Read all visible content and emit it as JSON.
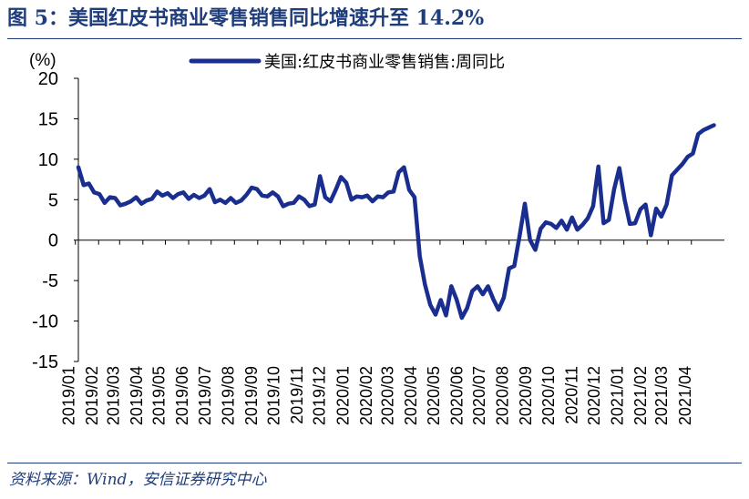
{
  "figure": {
    "title": "图 5：美国红皮书商业零售销售同比增速升至 14.2%",
    "source": "资料来源：Wind，安信证券研究中心"
  },
  "colors": {
    "accent": "#1f3d7a",
    "series": "#1a2e8f"
  },
  "chart_data": {
    "type": "line",
    "ylabel_unit": "(%)",
    "ylim": [
      -15,
      20
    ],
    "yticks": [
      20,
      15,
      10,
      5,
      0,
      -5,
      -10,
      -15
    ],
    "x_start": "2019/01/05",
    "x_end": "2021/05/15",
    "categories": [
      "2019/01",
      "2019/02",
      "2019/03",
      "2019/04",
      "2019/05",
      "2019/06",
      "2019/07",
      "2019/08",
      "2019/09",
      "2019/10",
      "2019/11",
      "2019/12",
      "2020/01",
      "2020/02",
      "2020/03",
      "2020/04",
      "2020/05",
      "2020/06",
      "2020/07",
      "2020/08",
      "2020/09",
      "2020/10",
      "2020/11",
      "2020/12",
      "2021/01",
      "2021/02",
      "2021/03",
      "2021/04"
    ],
    "legend": {
      "position": "top-center"
    },
    "grid": false,
    "series": [
      {
        "name": "美国:红皮书商业零售销售:周同比",
        "points": [
          [
            "2019/01/05",
            9.0
          ],
          [
            "2019/01/12",
            6.8
          ],
          [
            "2019/01/19",
            7.0
          ],
          [
            "2019/01/26",
            5.9
          ],
          [
            "2019/02/02",
            5.7
          ],
          [
            "2019/02/09",
            4.6
          ],
          [
            "2019/02/16",
            5.3
          ],
          [
            "2019/02/23",
            5.2
          ],
          [
            "2019/03/02",
            4.3
          ],
          [
            "2019/03/09",
            4.5
          ],
          [
            "2019/03/16",
            4.8
          ],
          [
            "2019/03/23",
            5.3
          ],
          [
            "2019/03/30",
            4.5
          ],
          [
            "2019/04/06",
            4.9
          ],
          [
            "2019/04/13",
            5.1
          ],
          [
            "2019/04/20",
            6.0
          ],
          [
            "2019/04/27",
            5.5
          ],
          [
            "2019/05/04",
            5.8
          ],
          [
            "2019/05/11",
            5.2
          ],
          [
            "2019/05/18",
            5.7
          ],
          [
            "2019/05/25",
            5.9
          ],
          [
            "2019/06/01",
            5.1
          ],
          [
            "2019/06/08",
            5.6
          ],
          [
            "2019/06/15",
            5.2
          ],
          [
            "2019/06/22",
            5.5
          ],
          [
            "2019/06/29",
            6.3
          ],
          [
            "2019/07/06",
            4.7
          ],
          [
            "2019/07/13",
            5.0
          ],
          [
            "2019/07/20",
            4.6
          ],
          [
            "2019/07/27",
            5.2
          ],
          [
            "2019/08/03",
            4.6
          ],
          [
            "2019/08/10",
            4.9
          ],
          [
            "2019/08/17",
            5.6
          ],
          [
            "2019/08/24",
            6.5
          ],
          [
            "2019/08/31",
            6.3
          ],
          [
            "2019/09/07",
            5.5
          ],
          [
            "2019/09/14",
            5.4
          ],
          [
            "2019/09/21",
            5.9
          ],
          [
            "2019/09/28",
            5.4
          ],
          [
            "2019/10/05",
            4.2
          ],
          [
            "2019/10/12",
            4.5
          ],
          [
            "2019/10/19",
            4.6
          ],
          [
            "2019/10/26",
            5.4
          ],
          [
            "2019/11/02",
            5.0
          ],
          [
            "2019/11/09",
            4.2
          ],
          [
            "2019/11/16",
            4.4
          ],
          [
            "2019/11/23",
            7.9
          ],
          [
            "2019/11/30",
            5.3
          ],
          [
            "2019/12/07",
            4.8
          ],
          [
            "2019/12/14",
            6.2
          ],
          [
            "2019/12/21",
            7.8
          ],
          [
            "2019/12/28",
            7.1
          ],
          [
            "2020/01/04",
            5.0
          ],
          [
            "2020/01/11",
            5.4
          ],
          [
            "2020/01/18",
            5.3
          ],
          [
            "2020/01/25",
            5.5
          ],
          [
            "2020/02/01",
            4.8
          ],
          [
            "2020/02/08",
            5.4
          ],
          [
            "2020/02/15",
            5.3
          ],
          [
            "2020/02/22",
            5.9
          ],
          [
            "2020/02/29",
            6.0
          ],
          [
            "2020/03/07",
            8.4
          ],
          [
            "2020/03/14",
            9.0
          ],
          [
            "2020/03/21",
            6.2
          ],
          [
            "2020/03/28",
            5.3
          ],
          [
            "2020/04/04",
            -2.0
          ],
          [
            "2020/04/11",
            -5.5
          ],
          [
            "2020/04/18",
            -8.0
          ],
          [
            "2020/04/25",
            -9.2
          ],
          [
            "2020/05/02",
            -7.4
          ],
          [
            "2020/05/09",
            -9.3
          ],
          [
            "2020/05/16",
            -5.7
          ],
          [
            "2020/05/23",
            -7.3
          ],
          [
            "2020/05/30",
            -9.6
          ],
          [
            "2020/06/06",
            -8.4
          ],
          [
            "2020/06/13",
            -6.3
          ],
          [
            "2020/06/20",
            -5.7
          ],
          [
            "2020/06/27",
            -6.7
          ],
          [
            "2020/07/04",
            -5.7
          ],
          [
            "2020/07/11",
            -7.3
          ],
          [
            "2020/07/18",
            -8.6
          ],
          [
            "2020/07/25",
            -7.1
          ],
          [
            "2020/08/01",
            -3.5
          ],
          [
            "2020/08/08",
            -3.2
          ],
          [
            "2020/08/15",
            0.5
          ],
          [
            "2020/08/22",
            4.5
          ],
          [
            "2020/08/29",
            0.0
          ],
          [
            "2020/09/05",
            -1.2
          ],
          [
            "2020/09/12",
            1.4
          ],
          [
            "2020/09/19",
            2.2
          ],
          [
            "2020/09/26",
            2.0
          ],
          [
            "2020/10/03",
            1.5
          ],
          [
            "2020/10/10",
            2.4
          ],
          [
            "2020/10/17",
            1.3
          ],
          [
            "2020/10/24",
            2.8
          ],
          [
            "2020/10/31",
            1.3
          ],
          [
            "2020/11/07",
            1.9
          ],
          [
            "2020/11/14",
            2.7
          ],
          [
            "2020/11/21",
            4.2
          ],
          [
            "2020/11/28",
            9.1
          ],
          [
            "2020/12/05",
            2.1
          ],
          [
            "2020/12/12",
            2.5
          ],
          [
            "2020/12/19",
            6.3
          ],
          [
            "2020/12/26",
            8.9
          ],
          [
            "2021/01/02",
            5.0
          ],
          [
            "2021/01/09",
            2.0
          ],
          [
            "2021/01/16",
            2.1
          ],
          [
            "2021/01/23",
            3.8
          ],
          [
            "2021/01/30",
            4.4
          ],
          [
            "2021/02/06",
            0.6
          ],
          [
            "2021/02/13",
            3.9
          ],
          [
            "2021/02/20",
            2.9
          ],
          [
            "2021/02/27",
            4.4
          ],
          [
            "2021/03/06",
            8.0
          ],
          [
            "2021/03/13",
            8.7
          ],
          [
            "2021/03/20",
            9.4
          ],
          [
            "2021/03/27",
            10.3
          ],
          [
            "2021/04/03",
            10.7
          ],
          [
            "2021/04/10",
            13.1
          ],
          [
            "2021/04/17",
            13.6
          ],
          [
            "2021/04/24",
            13.9
          ],
          [
            "2021/05/01",
            14.2
          ]
        ]
      }
    ]
  }
}
